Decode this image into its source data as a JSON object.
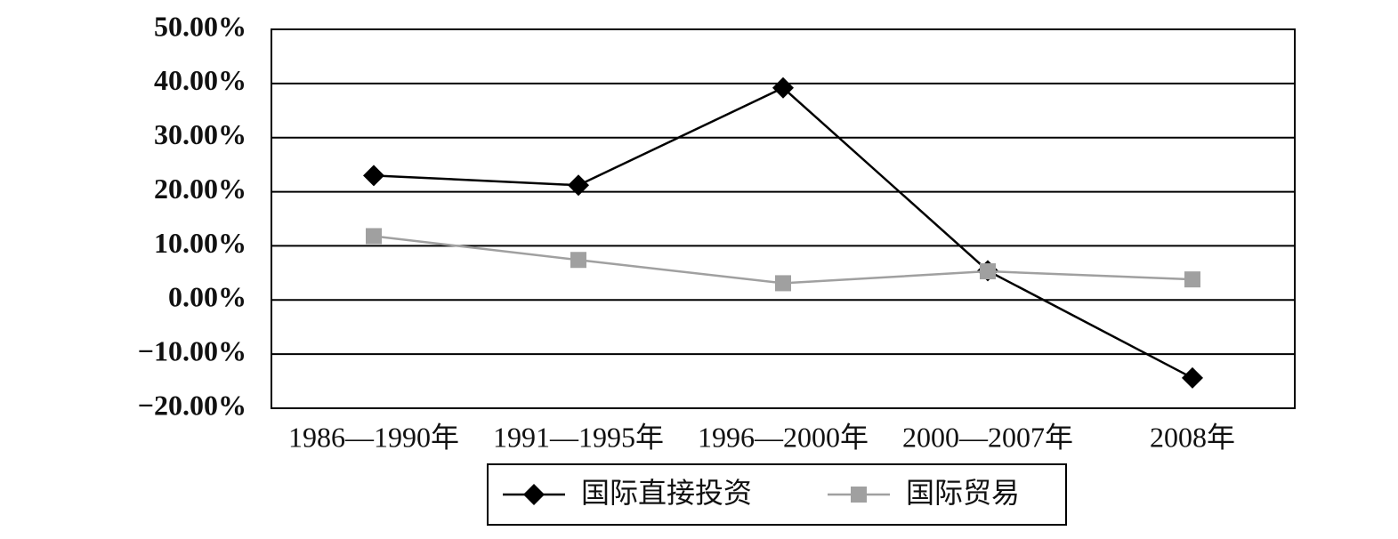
{
  "chart_data": {
    "type": "line",
    "categories": [
      "1986—1990年",
      "1991—1995年",
      "1996—2000年",
      "2000—2007年",
      "2008年"
    ],
    "series": [
      {
        "name": "国际直接投资",
        "color": "#000000",
        "marker": "diamond",
        "values": [
          23.0,
          21.2,
          39.2,
          5.4,
          -14.4
        ]
      },
      {
        "name": "国际贸易",
        "color": "#a0a0a0",
        "marker": "square",
        "values": [
          11.8,
          7.4,
          3.1,
          5.3,
          3.8
        ]
      }
    ],
    "ylim": [
      -20,
      50
    ],
    "yticks": [
      {
        "value": -20,
        "label": "−20.00%"
      },
      {
        "value": -10,
        "label": "−10.00%"
      },
      {
        "value": 0,
        "label": "0.00%"
      },
      {
        "value": 10,
        "label": "10.00%"
      },
      {
        "value": 20,
        "label": "20.00%"
      },
      {
        "value": 30,
        "label": "30.00%"
      },
      {
        "value": 40,
        "label": "40.00%"
      },
      {
        "value": 50,
        "label": "50.00%"
      }
    ],
    "grid": true,
    "legend": "bottom"
  }
}
